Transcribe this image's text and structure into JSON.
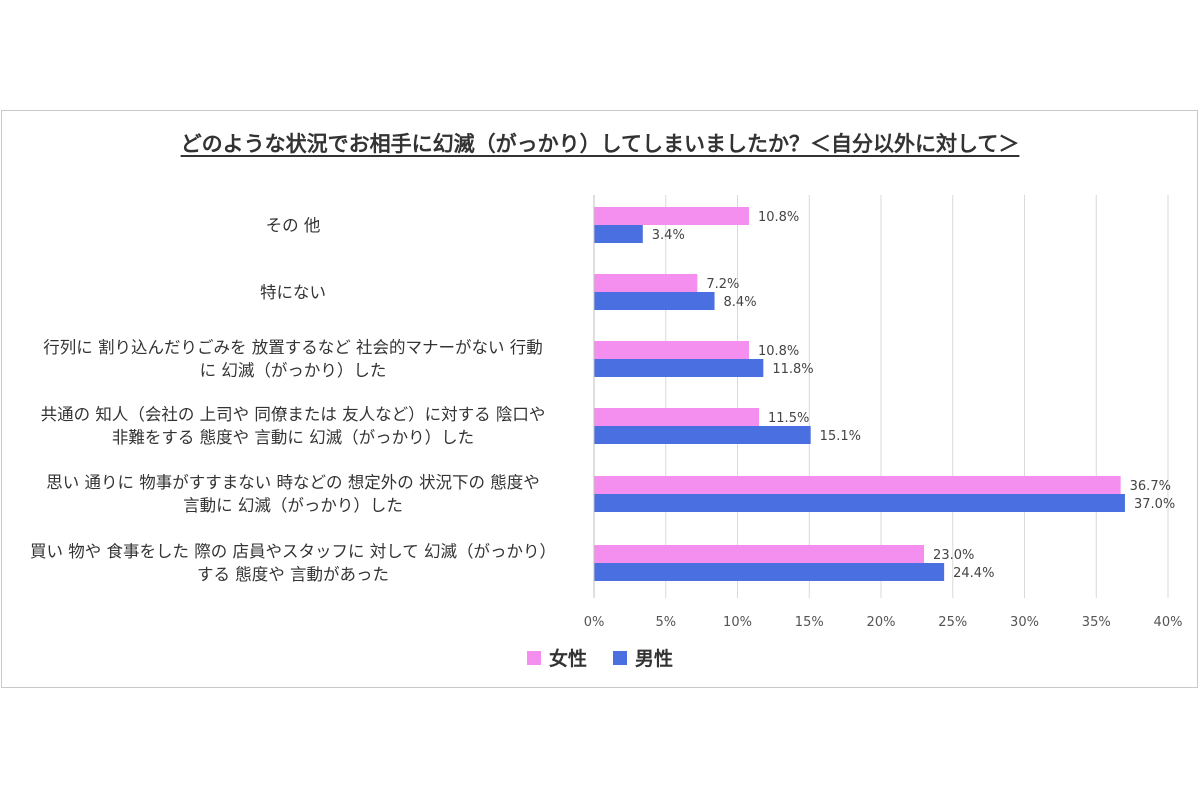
{
  "chart_data": {
    "type": "bar",
    "orientation": "horizontal",
    "title": "どのような状況でお相手に幻滅（がっかり）してしまいましたか？＜自分以外に対して＞",
    "categories": [
      [
        "その 他"
      ],
      [
        "特にない"
      ],
      [
        "行列に 割り込んだりごみを 放置するなど 社会的マナーがない 行動",
        "に 幻滅（がっかり）した"
      ],
      [
        "共通の 知人（会社の 上司や 同僚または 友人など）に対する 陰口や",
        "非難をする 態度や 言動に 幻滅（がっかり）した"
      ],
      [
        "思い 通りに 物事がすすまない 時などの 想定外の 状況下の 態度や",
        "言動に 幻滅（がっかり）した"
      ],
      [
        "買い 物や 食事をした 際の 店員やスタッフに 対して 幻滅（がっかり）",
        "する 態度や 言動があった"
      ]
    ],
    "series": [
      {
        "name": "女性",
        "color": "#f48ff0",
        "values": [
          10.8,
          7.2,
          10.8,
          11.5,
          36.7,
          23.0
        ],
        "labels": [
          "10.8%",
          "7.2%",
          "10.8%",
          "11.5%",
          "36.7%",
          "23.0%"
        ]
      },
      {
        "name": "男性",
        "color": "#4a6fe0",
        "values": [
          3.4,
          8.4,
          11.8,
          15.1,
          37.0,
          24.4
        ],
        "labels": [
          "3.4%",
          "8.4%",
          "11.8%",
          "15.1%",
          "37.0%",
          "24.4%"
        ]
      }
    ],
    "xlim": [
      0,
      40
    ],
    "xticks": [
      0,
      5,
      10,
      15,
      20,
      25,
      30,
      35,
      40
    ],
    "xtick_labels": [
      "0%",
      "5%",
      "10%",
      "15%",
      "20%",
      "25%",
      "30%",
      "35%",
      "40%"
    ],
    "grid": true,
    "legend_position": "bottom"
  }
}
